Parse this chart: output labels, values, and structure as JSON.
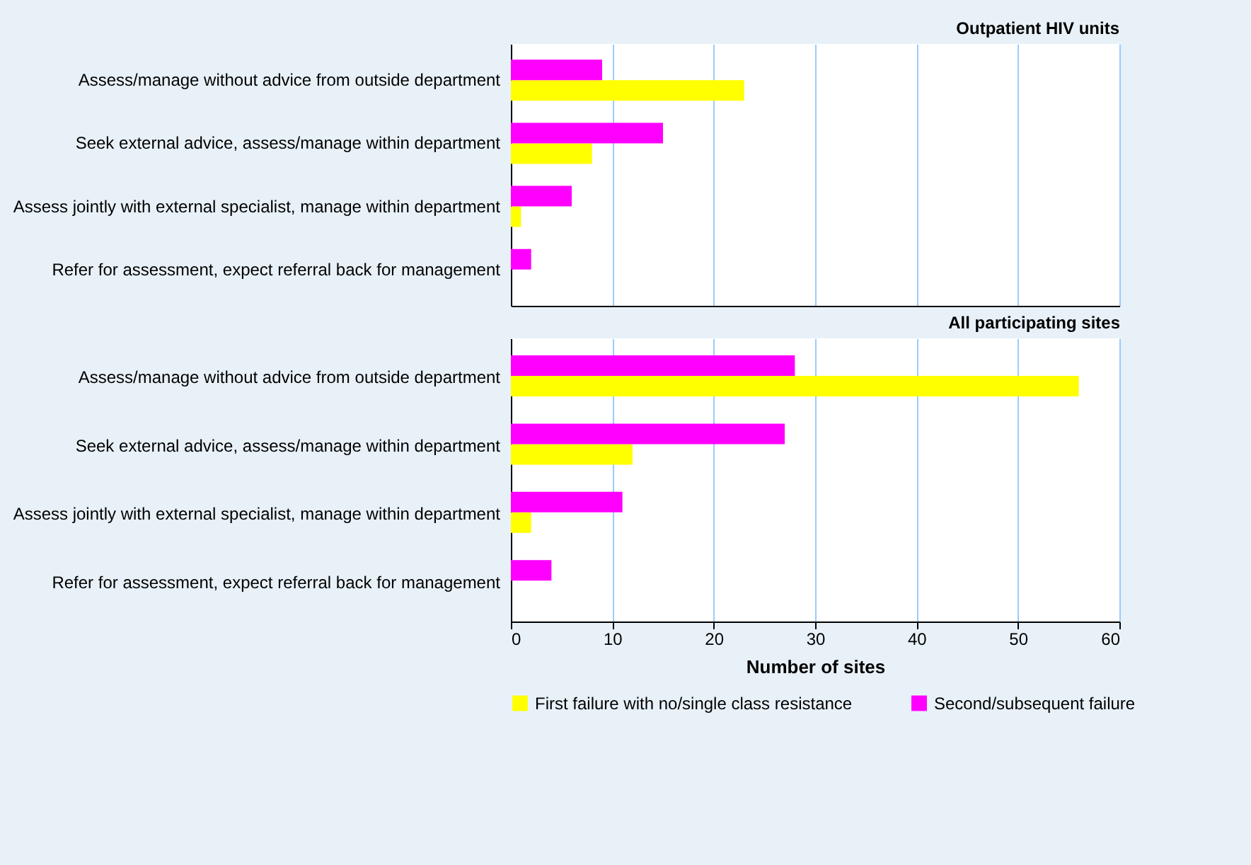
{
  "chart_data": [
    {
      "type": "bar",
      "orientation": "horizontal",
      "title": "Outpatient HIV units",
      "categories": [
        "Assess/manage without advice from outside department",
        "Seek external advice, assess/manage within department",
        "Assess jointly with external specialist, manage within department",
        "Refer for assessment, expect referral back for management"
      ],
      "series": [
        {
          "name": "First failure with no/single class resistance",
          "color": "#ffff00",
          "values": [
            23,
            8,
            1,
            0
          ]
        },
        {
          "name": "Second/subsequent failure",
          "color": "#ff00ff",
          "values": [
            9,
            15,
            6,
            2
          ]
        }
      ],
      "xlim": [
        0,
        60
      ],
      "xticks": [
        0,
        10,
        20,
        30,
        40,
        50,
        60
      ],
      "grid": "x",
      "tick_labels": "y",
      "legend": "bottom"
    },
    {
      "type": "bar",
      "orientation": "horizontal",
      "title": "All participating sites",
      "categories": [
        "Assess/manage without advice from outside department",
        "Seek external advice, assess/manage within department",
        "Assess jointly with external specialist, manage within department",
        "Refer for assessment, expect referral back for management"
      ],
      "series": [
        {
          "name": "First failure with no/single class resistance",
          "color": "#ffff00",
          "values": [
            56,
            12,
            2,
            0
          ]
        },
        {
          "name": "Second/subsequent failure",
          "color": "#ff00ff",
          "values": [
            28,
            27,
            11,
            4
          ]
        }
      ],
      "xlim": [
        0,
        60
      ],
      "xticks": [
        0,
        10,
        20,
        30,
        40,
        50,
        60
      ],
      "xlabel": "Number of sites",
      "grid": "x",
      "legend": "bottom"
    }
  ]
}
